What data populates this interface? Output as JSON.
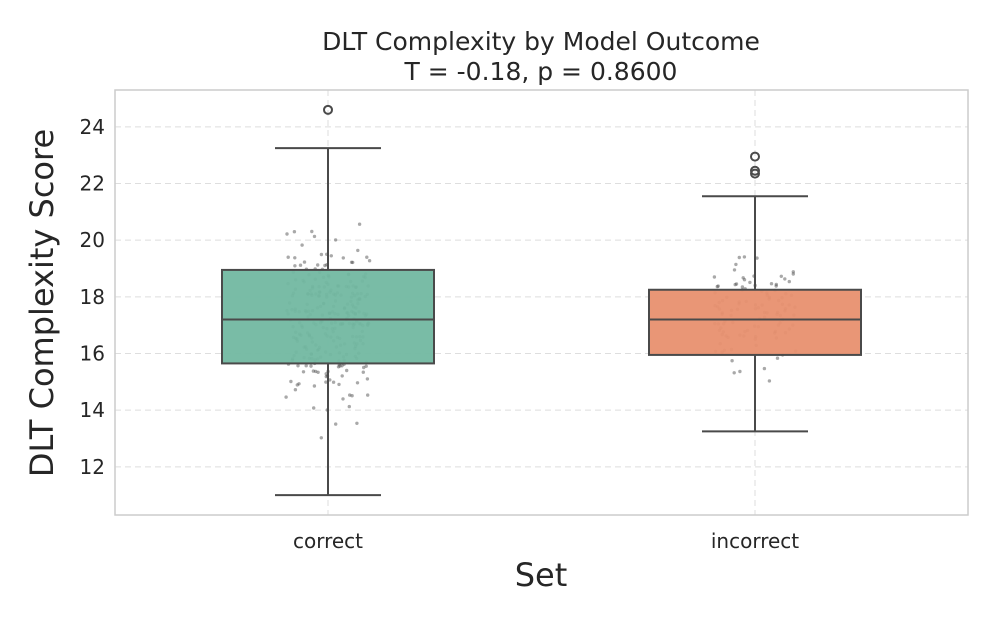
{
  "chart_data": {
    "type": "boxplot",
    "title": "DLT Complexity by Model Outcome",
    "subtitle": "T = -0.18, p = 0.8600",
    "xlabel": "Set",
    "ylabel": "DLT Complexity Score",
    "ylim": [
      10.3,
      25.3
    ],
    "yticks": [
      12,
      14,
      16,
      18,
      20,
      22,
      24
    ],
    "grid": true,
    "categories": [
      "correct",
      "incorrect"
    ],
    "series": [
      {
        "name": "correct",
        "color": "#72b8a1",
        "whisker_low": 11.0,
        "q1": 15.65,
        "median": 17.2,
        "q3": 18.95,
        "whisker_high": 23.25,
        "outliers": [
          24.6
        ],
        "n_points": 280
      },
      {
        "name": "incorrect",
        "color": "#e8906f",
        "whisker_low": 13.25,
        "q1": 15.95,
        "median": 17.2,
        "q3": 18.25,
        "whisker_high": 21.55,
        "outliers": [
          22.35,
          22.45,
          22.95
        ],
        "n_points": 110
      }
    ]
  }
}
